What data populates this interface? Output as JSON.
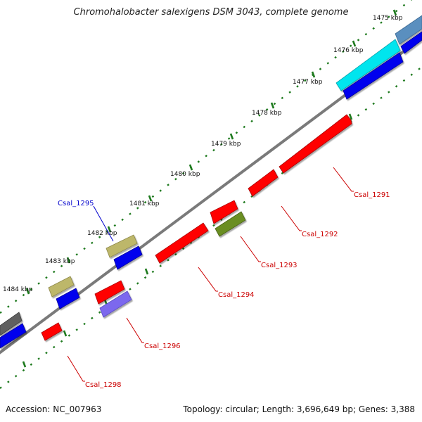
{
  "title": "Chromohalobacter salexigens DSM 3043, complete genome",
  "accession_text": "Accession: NC_007963",
  "summary_text": "Topology: circular; Length: 3,696,649 bp; Genes: 3,388",
  "colors": {
    "backbone": "#7a7a7a",
    "tick": "#1e7a1e",
    "label_red": "#cc0000",
    "label_blue": "#0000cc",
    "red": "#ff0000",
    "blue": "#0000ee",
    "cyan": "#00e5ee",
    "steel": "#5a8fbf",
    "khaki": "#bdb76b",
    "olive": "#6b8e23",
    "slate": "#7b68ee",
    "gray": "#606060"
  },
  "kbp_labels": [
    {
      "id": "1475",
      "text": "1475 kbp"
    },
    {
      "id": "1476",
      "text": "1476 kbp"
    },
    {
      "id": "1477",
      "text": "1477 kbp"
    },
    {
      "id": "1478",
      "text": "1478 kbp"
    },
    {
      "id": "1479",
      "text": "1479 kbp"
    },
    {
      "id": "1480",
      "text": "1480 kbp"
    },
    {
      "id": "1481",
      "text": "1481 kbp"
    },
    {
      "id": "1482",
      "text": "1482 kbp"
    },
    {
      "id": "1483",
      "text": "1483 kbp"
    },
    {
      "id": "1484",
      "text": "1484 kbp"
    }
  ],
  "gene_labels": [
    {
      "id": "1291",
      "text": "Csal_1291"
    },
    {
      "id": "1292",
      "text": "Csal_1292"
    },
    {
      "id": "1293",
      "text": "Csal_1293"
    },
    {
      "id": "1294",
      "text": "Csal_1294"
    },
    {
      "id": "1295",
      "text": "Csal_1295"
    },
    {
      "id": "1296",
      "text": "Csal_1296"
    },
    {
      "id": "1298",
      "text": "Csal_1298"
    }
  ]
}
